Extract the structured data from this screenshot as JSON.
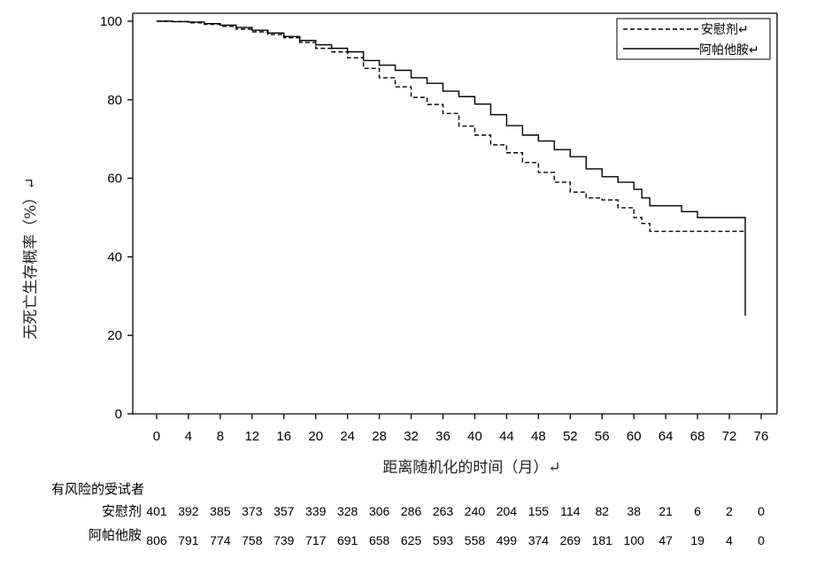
{
  "chart_data": {
    "type": "line",
    "subtype": "kaplan-meier step",
    "xlabel": "距离随机化的时间（月）↵",
    "ylabel": "无死亡生存概率（%）↵",
    "xlim": [
      -3,
      78
    ],
    "ylim": [
      0,
      100
    ],
    "xticks": [
      0,
      4,
      8,
      12,
      16,
      20,
      24,
      28,
      32,
      36,
      40,
      44,
      48,
      52,
      56,
      60,
      64,
      68,
      72,
      76
    ],
    "yticks": [
      0,
      20,
      40,
      60,
      80,
      100
    ],
    "grid": false,
    "legend_position": "top-right",
    "legend": [
      {
        "label": "安慰剂↵",
        "style": "dashed"
      },
      {
        "label": "阿帕他胺↵",
        "style": "solid"
      }
    ],
    "series": [
      {
        "name": "安慰剂",
        "style": "dashed",
        "x": [
          0,
          2,
          4,
          6,
          8,
          10,
          12,
          14,
          16,
          18,
          20,
          22,
          24,
          26,
          28,
          30,
          32,
          34,
          36,
          38,
          40,
          42,
          44,
          46,
          48,
          50,
          52,
          54,
          56,
          58,
          60,
          61,
          62,
          64,
          66,
          68,
          70,
          72,
          74
        ],
        "y": [
          100,
          99.9,
          99.6,
          99.2,
          98.7,
          98.0,
          97.3,
          96.6,
          95.8,
          94.6,
          93.1,
          92.2,
          90.7,
          88.0,
          85.6,
          83.3,
          80.6,
          78.8,
          76.5,
          73.3,
          71.0,
          68.5,
          66.5,
          64.0,
          61.5,
          59.0,
          56.5,
          55.0,
          54.5,
          52.5,
          50.0,
          48.5,
          46.5,
          46.5,
          46.5,
          46.5,
          46.5,
          46.5,
          46.5
        ]
      },
      {
        "name": "阿帕他胺",
        "style": "solid",
        "x": [
          0,
          2,
          4,
          6,
          8,
          10,
          12,
          14,
          16,
          18,
          20,
          22,
          24,
          26,
          28,
          30,
          32,
          34,
          36,
          38,
          40,
          42,
          44,
          46,
          48,
          50,
          52,
          54,
          56,
          58,
          60,
          61,
          62,
          64,
          66,
          68,
          70,
          72,
          74,
          74
        ],
        "y": [
          100,
          99.9,
          99.8,
          99.4,
          99.0,
          98.4,
          97.7,
          97.0,
          96.1,
          95.1,
          94.0,
          93.1,
          92.2,
          90.0,
          88.8,
          87.5,
          85.6,
          84.2,
          82.2,
          80.8,
          78.9,
          76.2,
          73.4,
          71.0,
          69.5,
          67.3,
          65.5,
          62.4,
          60.4,
          59.0,
          57.2,
          55.0,
          53.0,
          53.0,
          51.5,
          50.0,
          50.0,
          50.0,
          50.0,
          25.0
        ]
      }
    ],
    "risk_table": {
      "title": "有风险的受试者",
      "rows": [
        {
          "label": "安慰剂",
          "values": [
            "401",
            "392",
            "385",
            "373",
            "357",
            "339",
            "328",
            "306",
            "286",
            "263",
            "240",
            "204",
            "155",
            "114",
            "82",
            "38",
            "21",
            "6",
            "2",
            "0"
          ]
        },
        {
          "label": "阿帕他胺",
          "values": [
            "806",
            "791",
            "774",
            "758",
            "739",
            "717",
            "691",
            "658",
            "625",
            "593",
            "558",
            "499",
            "374",
            "269",
            "181",
            "100",
            "47",
            "19",
            "4",
            "0"
          ]
        }
      ]
    }
  }
}
